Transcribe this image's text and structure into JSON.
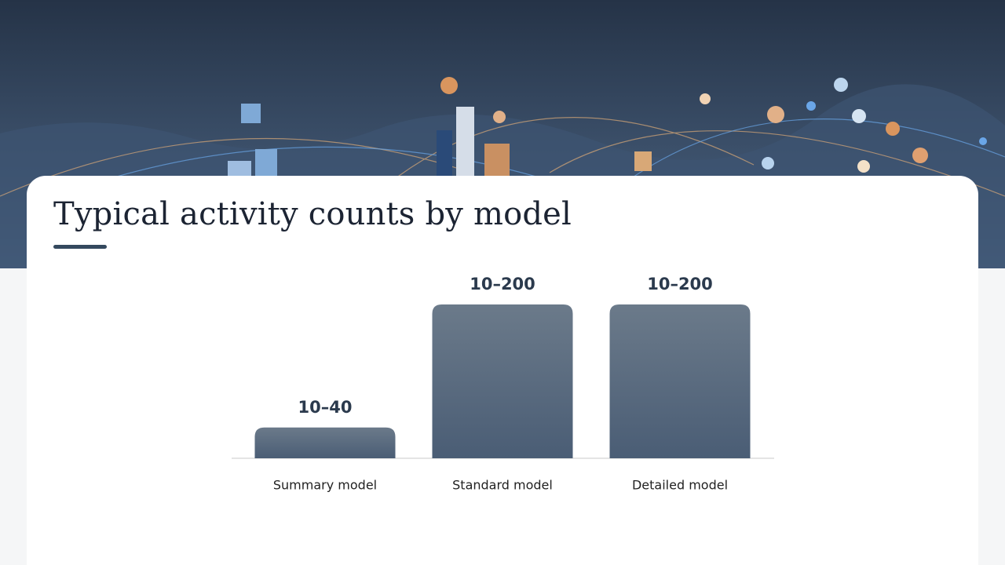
{
  "chart_data": {
    "type": "bar",
    "title": "Typical activity counts by model",
    "categories": [
      "Summary model",
      "Standard model",
      "Detailed model"
    ],
    "values": [
      40,
      200,
      200
    ],
    "value_labels": [
      "10–40",
      "10–200",
      "10–200"
    ],
    "color": "#4a5d75"
  }
}
